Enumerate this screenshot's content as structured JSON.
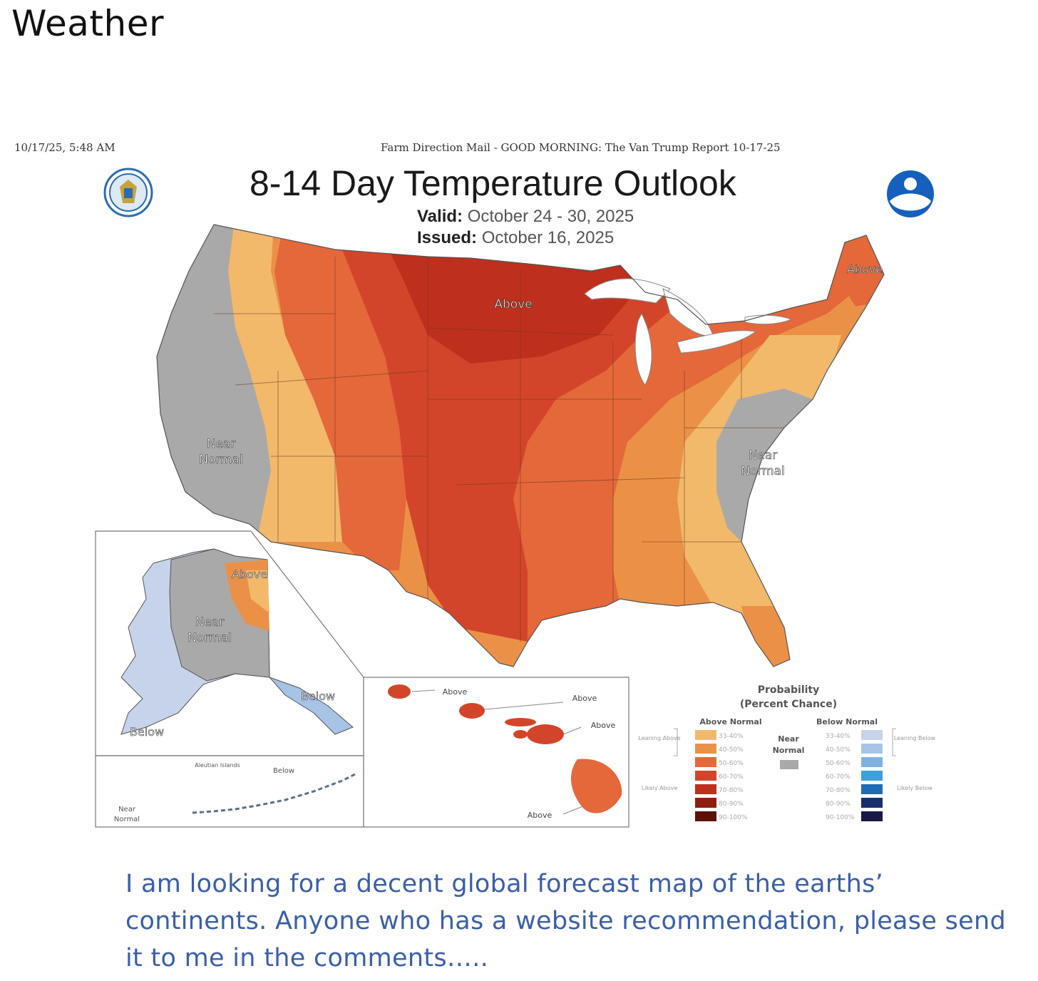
{
  "page": {
    "heading": "Weather"
  },
  "print_header": {
    "timestamp": "10/17/25, 5:48 AM",
    "source": "Farm Direction Mail - GOOD MORNING: The Van Trump Report 10-17-25"
  },
  "map": {
    "title": "8-14 Day Temperature Outlook",
    "valid_label": "Valid:",
    "valid_value": "October 24 - 30, 2025",
    "issued_label": "Issued:",
    "issued_value": "October 16, 2025",
    "logos": [
      "doc-seal-icon",
      "noaa-logo-icon"
    ],
    "labels": {
      "above_central": "Above",
      "above_maine": "Above",
      "near_normal_west": "Near\nNormal",
      "near_normal_east": "Near\nNormal",
      "alaska_above": "Above",
      "alaska_near": "Near\nNormal",
      "alaska_below_se": "Below",
      "alaska_below_sw": "Below",
      "aleutian_title": "Aleutian Islands",
      "aleutian_below": "Below",
      "aleutian_near": "Near\nNormal",
      "hawaii_above_1": "Above",
      "hawaii_above_2": "Above",
      "hawaii_above_3": "Above",
      "hawaii_above_4": "Above"
    },
    "colors": {
      "near_normal": "#a9a9a9",
      "above_33_40": "#f2b96b",
      "above_40_50": "#eb9147",
      "above_50_60": "#e4683a",
      "above_60_70": "#d3452a",
      "above_70_80": "#bf2f1d",
      "above_80_90": "#8f1d10",
      "above_90_100": "#5c1207",
      "below_33_40": "#c7d3ea",
      "below_40_50": "#a7c3e6",
      "below_50_60": "#7fb2e3",
      "below_60_70": "#3e9fdc",
      "below_70_80": "#1f6bb6",
      "below_80_90": "#1a2f6e",
      "below_90_100": "#191947"
    },
    "legend": {
      "title_line1": "Probability",
      "title_line2": "(Percent Chance)",
      "above_header": "Above Normal",
      "below_header": "Below Normal",
      "near_label_1": "Near",
      "near_label_2": "Normal",
      "leaning_above": "Leaning Above",
      "likely_above": "Likely Above",
      "leaning_below": "Leaning Below",
      "likely_below": "Likely Below",
      "ranges": [
        "33-40%",
        "40-50%",
        "50-60%",
        "60-70%",
        "70-80%",
        "80-90%",
        "90-100%"
      ]
    }
  },
  "comment": "I am looking for a decent global forecast map of the earths’ continents. Anyone who has a website recommendation, please send it to me in the comments….."
}
